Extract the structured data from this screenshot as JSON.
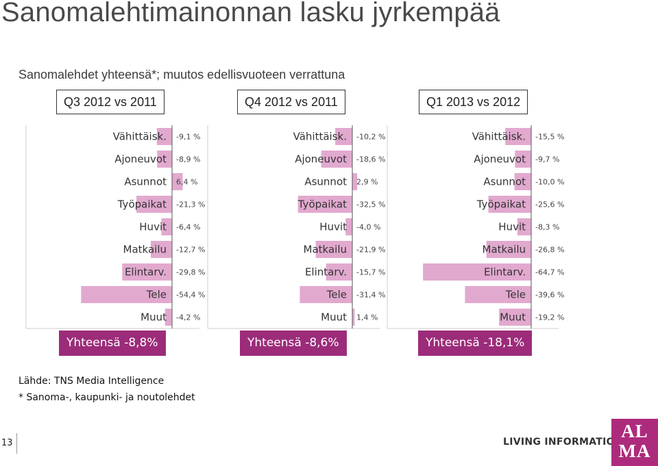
{
  "title": "Sanomalehtimainonnan lasku jyrkempää",
  "subtitle": "Sanomalehdet yhteensä*; muutos edellisvuoteen verrattuna",
  "colors": {
    "bar": "#e2a9cf",
    "accent": "#9c2c7a",
    "axis": "#555555"
  },
  "chart_data": [
    {
      "type": "bar",
      "orientation": "horizontal",
      "title": "Q3 2012 vs 2011",
      "categories": [
        "Vähittäisk.",
        "Ajoneuvot",
        "Asunnot",
        "Työpaikat",
        "Huvit",
        "Matkailu",
        "Elintarv.",
        "Tele",
        "Muut"
      ],
      "values": [
        -9.1,
        -8.9,
        6.4,
        -21.3,
        -6.4,
        -12.7,
        -29.8,
        -54.4,
        -4.2
      ],
      "value_labels": [
        "-9,1 %",
        "-8,9 %",
        "6,4 %",
        "-21,3 %",
        "-6,4 %",
        "-12,7 %",
        "-29,8 %",
        "-54,4 %",
        "-4,2 %"
      ],
      "total_label": "Yhteensä -8,8%"
    },
    {
      "type": "bar",
      "orientation": "horizontal",
      "title": "Q4 2012 vs 2011",
      "categories": [
        "Vähittäisk.",
        "Ajoneuvot",
        "Asunnot",
        "Työpaikat",
        "Huvit",
        "Matkailu",
        "Elintarv.",
        "Tele",
        "Muut"
      ],
      "values": [
        -10.2,
        -18.6,
        2.9,
        -32.5,
        -4.0,
        -21.9,
        -15.7,
        -31.4,
        1.4
      ],
      "value_labels": [
        "-10,2 %",
        "-18,6 %",
        "2,9 %",
        "-32,5 %",
        "-4,0 %",
        "-21,9 %",
        "-15,7 %",
        "-31,4 %",
        "1,4 %"
      ],
      "total_label": "Yhteensä -8,6%"
    },
    {
      "type": "bar",
      "orientation": "horizontal",
      "title": "Q1 2013 vs 2012",
      "categories": [
        "Vähittäisk.",
        "Ajoneuvot",
        "Asunnot",
        "Työpaikat",
        "Huvit",
        "Matkailu",
        "Elintarv.",
        "Tele",
        "Muut"
      ],
      "values": [
        -15.5,
        -9.7,
        -10.0,
        -25.6,
        -8.3,
        -26.8,
        -64.7,
        -39.6,
        -19.2
      ],
      "value_labels": [
        "-15,5 %",
        "-9,7 %",
        "-10,0 %",
        "-25,6 %",
        "-8,3 %",
        "-26,8 %",
        "-64,7 %",
        "-39,6 %",
        "-19,2 %"
      ],
      "total_label": "Yhteensä -18,1%"
    }
  ],
  "source": "Lähde: TNS Media Intelligence",
  "footnote": "* Sanoma-, kaupunki- ja noutolehdet",
  "page_number": "13",
  "tagline": "LIVING INFORMATION",
  "logo_text": "ALMA"
}
